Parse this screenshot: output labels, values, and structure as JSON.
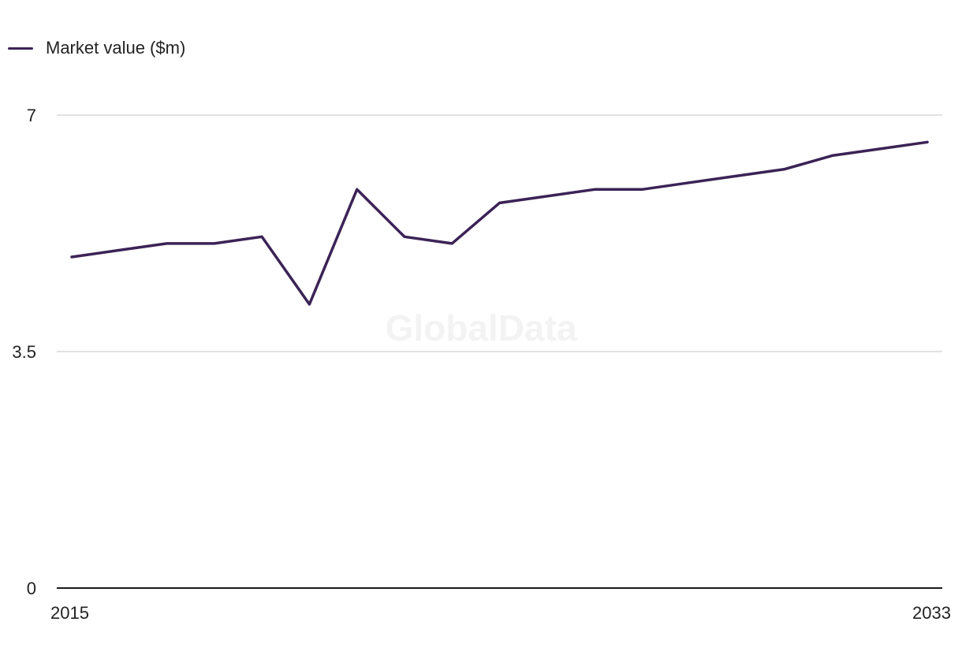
{
  "legend": {
    "label": "Market value ($m)",
    "color": "#3b2356"
  },
  "watermark": "GlobalData",
  "colors": {
    "line": "#3b2356",
    "grid": "#d9d9d9",
    "axis": "#1a1a1a"
  },
  "chart_data": {
    "type": "line",
    "title": "",
    "xlabel": "",
    "ylabel": "",
    "x": [
      2015,
      2016,
      2017,
      2018,
      2019,
      2020,
      2021,
      2022,
      2023,
      2024,
      2025,
      2026,
      2027,
      2028,
      2029,
      2030,
      2031,
      2032,
      2033
    ],
    "series": [
      {
        "name": "Market value ($m)",
        "values": [
          4.9,
          5.0,
          5.1,
          5.1,
          5.2,
          4.2,
          5.9,
          5.2,
          5.1,
          5.7,
          5.8,
          5.9,
          5.9,
          6.0,
          6.1,
          6.2,
          6.4,
          6.5,
          6.6
        ]
      }
    ],
    "ylim": [
      0,
      7
    ],
    "xlim": [
      2015,
      2033
    ],
    "y_ticks": [
      "0",
      "3.5",
      "7"
    ],
    "x_ticks": [
      "2015",
      "2033"
    ],
    "grid": true,
    "legend_position": "top-left"
  }
}
